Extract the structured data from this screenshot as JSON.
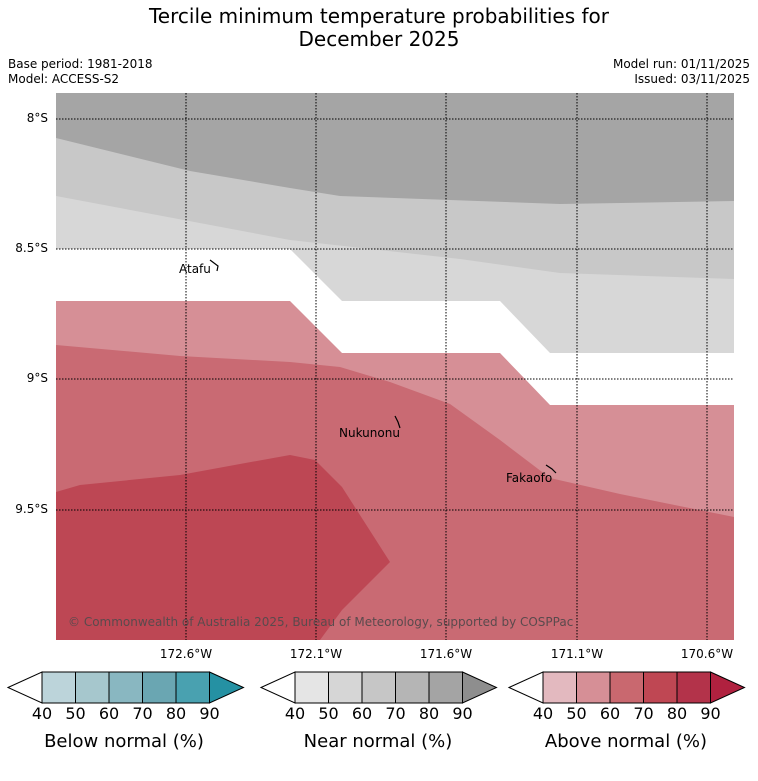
{
  "title_line1": "Tercile minimum temperature probabilities for",
  "title_line2": "December 2025",
  "base_period": "Base period: 1981-2018",
  "model": "Model: ACCESS-S2",
  "model_run": "Model run: 01/11/2025",
  "issued": "Issued: 03/11/2025",
  "lat_ticks": [
    "8°S",
    "8.5°S",
    "9°S",
    "9.5°S"
  ],
  "lon_ticks": [
    "172.6°W",
    "172.1°W",
    "171.6°W",
    "171.1°W",
    "170.6°W"
  ],
  "places": {
    "atafu": "Atafu",
    "nukunonu": "Nukunonu",
    "fakaofo": "Fakaofo"
  },
  "copyright": "© Commonwealth of Australia 2025, Bureau of Meteorology, supported by COSPPac",
  "colorbars": {
    "ticks": [
      "40",
      "50",
      "60",
      "70",
      "80",
      "90"
    ],
    "below": {
      "label": "Below normal (%)",
      "colors": [
        "#ffffff",
        "#bcd4da",
        "#a6c7cd",
        "#89b7c1",
        "#6aa6b2",
        "#49a1b0",
        "#2591a3"
      ]
    },
    "near": {
      "label": "Near normal (%)",
      "colors": [
        "#ffffff",
        "#e5e5e5",
        "#d6d6d6",
        "#c6c6c6",
        "#b5b5b5",
        "#a4a4a4",
        "#8e8e8e"
      ]
    },
    "above": {
      "label": "Above normal (%)",
      "colors": [
        "#ffffff",
        "#e3b9bf",
        "#d68f96",
        "#c9686f",
        "#bf4753",
        "#b3334a",
        "#b0213f"
      ]
    }
  },
  "colors": {
    "near_60": "#c8c8c8",
    "near_50": "#d7d7d7",
    "near_70": "#a5a5a5",
    "above_50": "#d68f96",
    "above_60": "#c96a73",
    "above_70": "#bd4754"
  }
}
